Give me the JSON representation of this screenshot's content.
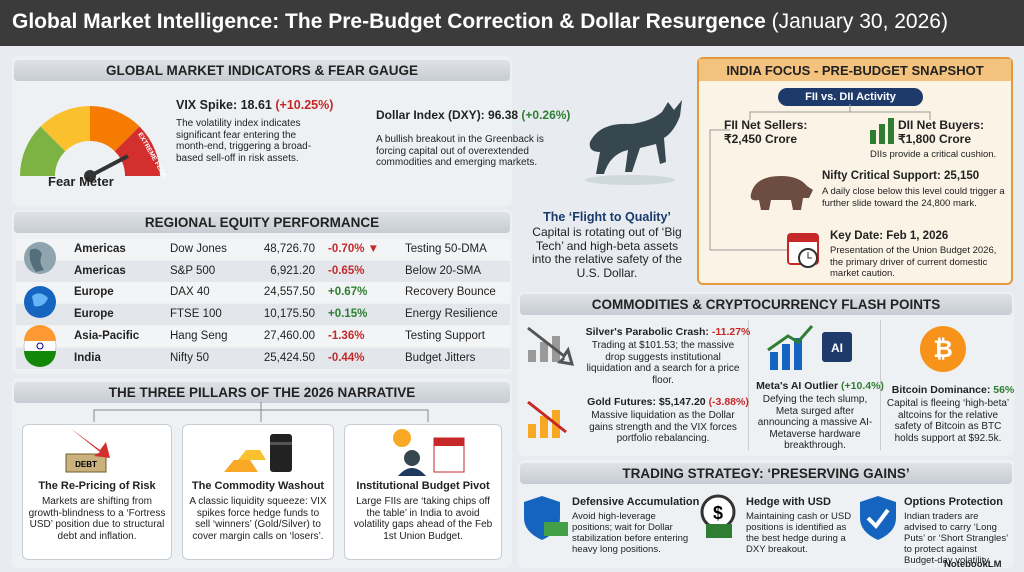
{
  "header": {
    "title": "Global Market Intelligence: The Pre-Budget Correction & Dollar Resurgence",
    "date": "(January 30, 2026)"
  },
  "indicators": {
    "title": "GLOBAL MARKET INDICATORS & FEAR GAUGE",
    "gauge_label": "Fear Meter",
    "gauge_zone": "EXTREME FEAR",
    "vix": {
      "label": "VIX Spike: 18.61",
      "change": "(+10.25%)",
      "text": "The volatility index indicates significant fear entering the month-end, triggering a broad-based sell-off in risk assets."
    },
    "dxy": {
      "label": "Dollar Index (DXY): 96.38",
      "change": "(+0.26%)",
      "text": "A bullish breakout in the Greenback is forcing capital out of overextended commodities and emerging markets."
    }
  },
  "regional": {
    "title": "REGIONAL EQUITY PERFORMANCE",
    "rows": [
      [
        "Americas",
        "Dow Jones",
        "48,726.70",
        "-0.70% ▼",
        "Testing 50-DMA"
      ],
      [
        "Americas",
        "S&P 500",
        "6,921.20",
        "-0.65%",
        "Below 20-SMA"
      ],
      [
        "Europe",
        "DAX 40",
        "24,557.50",
        "+0.67%",
        "Recovery Bounce"
      ],
      [
        "Europe",
        "FTSE 100",
        "10,175.50",
        "+0.15%",
        "Energy Resilience"
      ],
      [
        "Asia-Pacific",
        "Hang Seng",
        "27,460.00",
        "-1.36%",
        "Testing Support"
      ],
      [
        "India",
        "Nifty 50",
        "25,424.50",
        "-0.44%",
        "Budget Jitters"
      ]
    ]
  },
  "flight": {
    "title": "The ‘Flight to Quality’",
    "text": "Capital is rotating out of ‘Big Tech’ and high-beta assets into the relative safety of the U.S. Dollar."
  },
  "pillars": {
    "title": "THE THREE PILLARS OF THE 2026 NARRATIVE",
    "items": [
      {
        "icon_label": "DEBT",
        "title": "The Re-Pricing of Risk",
        "text": "Markets are shifting from growth-blindness to a ‘Fortress USD’ position due to structural debt and inflation."
      },
      {
        "title": "The Commodity Washout",
        "text": "A classic liquidity squeeze: VIX spikes force hedge funds to sell ‘winners’ (Gold/Silver) to cover margin calls on ‘losers’."
      },
      {
        "title": "Institutional Budget Pivot",
        "text": "Large FIIs are ‘taking chips off the table’ in India to avoid volatility gaps ahead of the Feb 1st Union Budget."
      }
    ]
  },
  "india": {
    "title": "INDIA FOCUS - PRE-BUDGET SNAPSHOT",
    "subtitle": "FII vs. DII Activity",
    "fii_title": "FII Net Sellers:",
    "fii_value": "₹2,450 Crore",
    "dii_title": "DII Net Buyers:",
    "dii_value": "₹1,800 Crore",
    "dii_note": "DIIs provide a critical cushion.",
    "nifty_title": "Nifty Critical Support: 25,150",
    "nifty_text": "A daily close below this level could trigger a further slide toward the 24,800 mark.",
    "key_title": "Key Date: Feb 1, 2026",
    "key_text": "Presentation of the Union Budget 2026, the primary driver of current domestic market caution."
  },
  "commodities": {
    "title": "COMMODITIES & CRYPTOCURRENCY FLASH POINTS",
    "items": [
      {
        "title": "Silver's Parabolic Crash:",
        "change": "-11.27%",
        "text": "Trading at $101.53; the massive drop suggests institutional liquidation and a search for a price floor."
      },
      {
        "title": "Gold Futures: $5,147.20",
        "change": "(-3.88%)",
        "text": "Massive liquidation as the Dollar gains strength and the VIX forces portfolio rebalancing."
      },
      {
        "icon_label": "AI",
        "title": "Meta's AI Outlier",
        "change": "(+10.4%)",
        "text": "Defying the tech slump, Meta surged after announcing a massive AI-Metaverse hardware breakthrough."
      },
      {
        "icon_label": "₿",
        "title": "Bitcoin Dominance:",
        "change": "56%",
        "text": "Capital is fleeing ‘high-beta’ altcoins for the relative safety of Bitcoin as BTC holds support at $92.5k."
      }
    ]
  },
  "strategy": {
    "title": "TRADING STRATEGY: ‘PRESERVING GAINS’",
    "items": [
      {
        "title": "Defensive Accumulation",
        "text": "Avoid high-leverage positions; wait for Dollar stabilization before entering heavy long positions."
      },
      {
        "icon_label": "$",
        "title": "Hedge with USD",
        "text": "Maintaining cash or USD positions is identified as the best hedge during a DXY breakout."
      },
      {
        "title": "Options Protection",
        "text": "Indian traders are advised to carry ‘Long Puts’ or ‘Short Strangles’ to protect against Budget-day volatility."
      }
    ]
  },
  "footer": {
    "brand": "NotebookLM"
  }
}
